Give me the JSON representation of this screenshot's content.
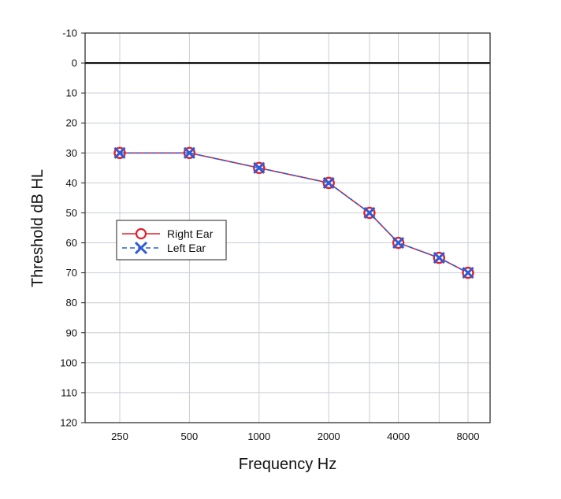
{
  "chart_data": {
    "type": "line",
    "title": "",
    "xlabel": "Frequency Hz",
    "ylabel": "Threshold dB HL",
    "categories": [
      "250",
      "500",
      "1000",
      "2000",
      "3000",
      "4000",
      "6000",
      "8000"
    ],
    "x_tick_labels": [
      "250",
      "500",
      "1000",
      "2000",
      "4000",
      "8000"
    ],
    "y_ticks": [
      -10,
      0,
      10,
      20,
      30,
      40,
      50,
      60,
      70,
      80,
      90,
      100,
      110,
      120
    ],
    "ylim": [
      -10,
      120
    ],
    "y_inverted": true,
    "reference_line": 0,
    "grid": true,
    "legend_position": "middle-left",
    "series": [
      {
        "name": "Right Ear",
        "values": [
          30,
          30,
          35,
          40,
          50,
          60,
          65,
          70
        ],
        "color": "#e0202a",
        "marker": "circle",
        "line": "solid"
      },
      {
        "name": "Left Ear",
        "values": [
          30,
          30,
          35,
          40,
          50,
          60,
          65,
          70
        ],
        "color": "#2e5bd6",
        "marker": "x",
        "line": "dashed"
      }
    ]
  }
}
